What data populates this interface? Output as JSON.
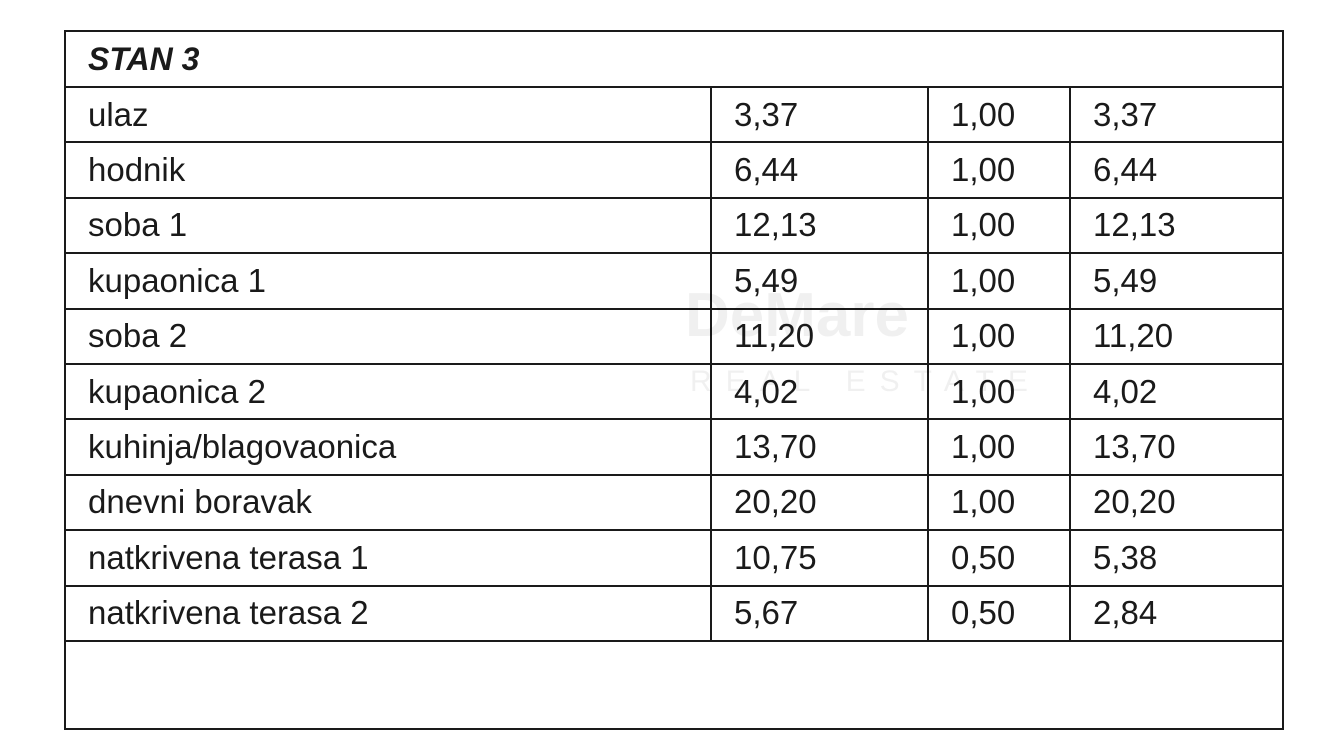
{
  "table": {
    "title": "STAN 3",
    "rows": [
      [
        "ulaz",
        "3,37",
        "1,00",
        "3,37"
      ],
      [
        "hodnik",
        "6,44",
        "1,00",
        "6,44"
      ],
      [
        "soba 1",
        "12,13",
        "1,00",
        "12,13"
      ],
      [
        "kupaonica 1",
        "5,49",
        "1,00",
        "5,49"
      ],
      [
        "soba 2",
        "11,20",
        "1,00",
        "11,20"
      ],
      [
        "kupaonica 2",
        "4,02",
        "1,00",
        "4,02"
      ],
      [
        "kuhinja/blagovaonica",
        "13,70",
        "1,00",
        "13,70"
      ],
      [
        "dnevni boravak",
        "20,20",
        "1,00",
        "20,20"
      ],
      [
        "natkrivena terasa 1",
        "10,75",
        "0,50",
        "5,38"
      ],
      [
        "natkrivena terasa 2",
        "5,67",
        "0,50",
        "2,84"
      ]
    ]
  },
  "watermark": {
    "brand": "DeMare",
    "tagline": "REAL ESTATE"
  }
}
